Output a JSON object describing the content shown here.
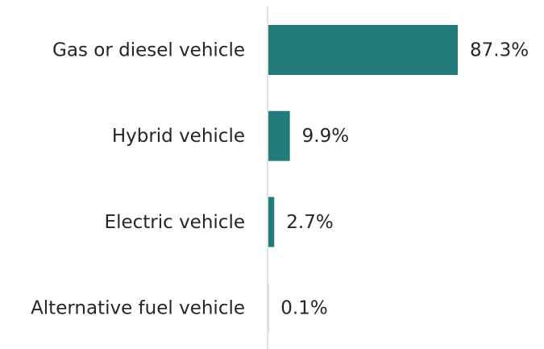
{
  "chart_data": {
    "type": "bar",
    "orientation": "horizontal",
    "categories": [
      "Gas or diesel vehicle",
      "Hybrid vehicle",
      "Electric vehicle",
      "Alternative fuel vehicle"
    ],
    "values": [
      87.3,
      9.9,
      2.7,
      0.1
    ],
    "value_labels": [
      "87.3%",
      "9.9%",
      "2.7%",
      "0.1%"
    ],
    "color": "#237b7b"
  }
}
